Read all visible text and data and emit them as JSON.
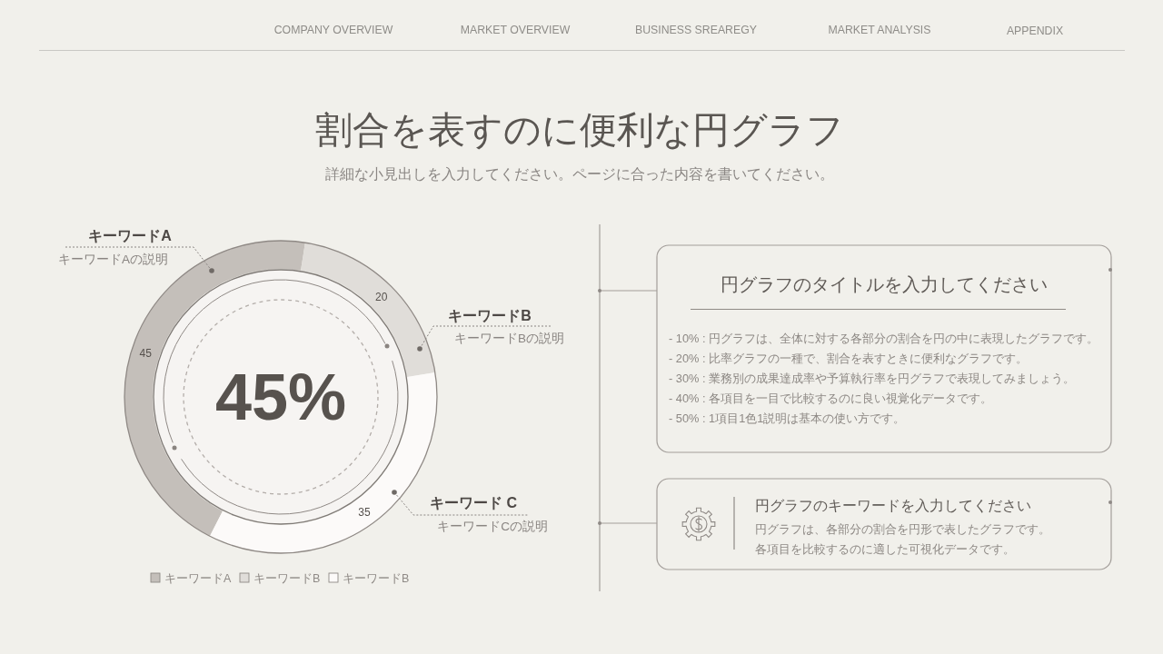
{
  "chart_data": {
    "type": "donut",
    "title": "割合を表すのに便利な円グラフ",
    "subtitle": "詳細な小見出しを入力してください。ページに合った内容を書いてください。",
    "categories": [
      "キーワードA",
      "キーワードB",
      "キーワードB"
    ],
    "values": [
      45,
      20,
      35
    ],
    "colors": [
      "#c4bfba",
      "#e0ddd9",
      "#fcfaf9"
    ],
    "data_labels": true,
    "legend": "bottom",
    "annotations": [
      "COMPANY OVERVIEW",
      "MARKET OVERVIEW",
      "BUSINESS SREAREGY",
      "MARKET ANALYSIS",
      "APPENDIX",
      "45%",
      "キーワードA",
      "キーワードAの説明",
      "キーワードB",
      "キーワードBの説明",
      "キーワード C",
      "キーワードCの説明",
      "円グラフのタイトルを入力してください",
      "- 10% : 円グラフは、全体に対する各部分の割合を円の中に表現したグラフです。",
      "- 20% : 比率グラフの一種で、割合を表すときに便利なグラフです。",
      "- 30% : 業務別の成果達成率や予算執行率を円グラフで表現してみましょう。",
      "- 40% : 各項目を一目で比較するのに良い視覚化データです。",
      "- 50% : 1項目1色1説明は基本の使い方です。",
      "円グラフのキーワードを入力してください",
      "円グラフは、各部分の割合を円形で表したグラフです。",
      "各項目を比較するのに適した可視化データです。"
    ]
  }
}
